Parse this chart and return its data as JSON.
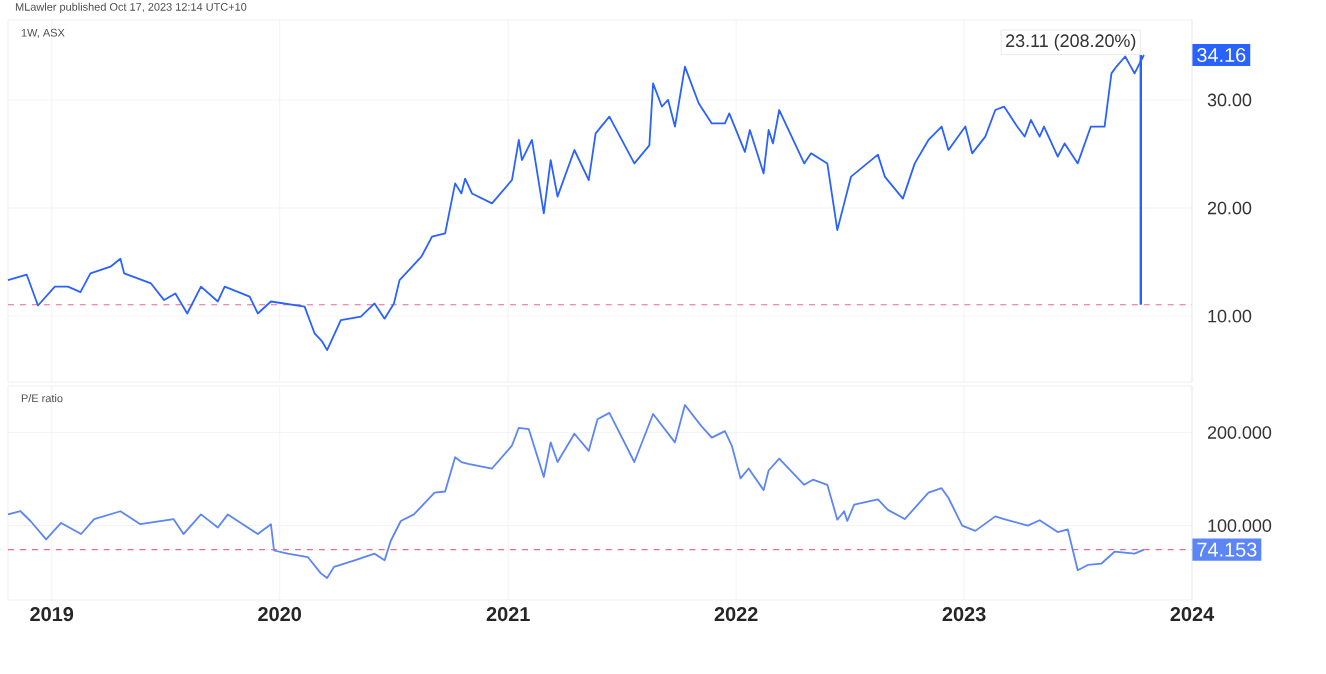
{
  "chart_data": [
    {
      "type": "line",
      "title": "1W, ASX",
      "annotations": [
        "MLawler published Oct 17, 2023 12:14 UTC+10",
        {
          "text": "23.11 (208.20%)",
          "x": "2023-10-11",
          "y": 34.16
        },
        {
          "text": "34.16",
          "x": "2023-10-16",
          "y": 34.16
        }
      ],
      "x": [
        "2018-10-23",
        "2018-11-22",
        "2018-12-10",
        "2019-01-06",
        "2019-01-27",
        "2019-02-16",
        "2019-03-04",
        "2019-04-05",
        "2019-04-21",
        "2019-04-27",
        "2019-06-09",
        "2019-06-30",
        "2019-07-18",
        "2019-08-06",
        "2019-08-28",
        "2019-09-24",
        "2019-10-05",
        "2019-11-14",
        "2019-11-27",
        "2019-12-18",
        "2020-02-10",
        "2020-02-26",
        "2020-03-09",
        "2020-03-17",
        "2020-04-08",
        "2020-05-10",
        "2020-06-01",
        "2020-06-17",
        "2020-07-02",
        "2020-07-11",
        "2020-08-15",
        "2020-09-01",
        "2020-09-22",
        "2020-10-08",
        "2020-10-18",
        "2020-10-24",
        "2020-11-04",
        "2020-12-06",
        "2021-01-07",
        "2021-01-18",
        "2021-01-23",
        "2021-02-08",
        "2021-02-27",
        "2021-03-10",
        "2021-03-21",
        "2021-04-17",
        "2021-05-10",
        "2021-05-21",
        "2021-06-12",
        "2021-07-22",
        "2021-08-15",
        "2021-08-21",
        "2021-09-04",
        "2021-09-14",
        "2021-09-25",
        "2021-10-11",
        "2021-11-02",
        "2021-11-23",
        "2021-12-14",
        "2021-12-21",
        "2022-01-15",
        "2022-01-23",
        "2022-02-14",
        "2022-02-22",
        "2022-03-01",
        "2022-03-11",
        "2022-04-20",
        "2022-05-01",
        "2022-05-27",
        "2022-06-12",
        "2022-06-23",
        "2022-07-04",
        "2022-08-16",
        "2022-08-27",
        "2022-09-25",
        "2022-10-14",
        "2022-11-05",
        "2022-11-26",
        "2022-12-07",
        "2023-01-03",
        "2023-01-14",
        "2023-02-04",
        "2023-02-20",
        "2023-03-06",
        "2023-03-27",
        "2023-04-08",
        "2023-04-18",
        "2023-05-02",
        "2023-05-09",
        "2023-05-31",
        "2023-06-11",
        "2023-07-02",
        "2023-07-23",
        "2023-08-14",
        "2023-08-25",
        "2023-09-02",
        "2023-09-16",
        "2023-10-01",
        "2023-10-16"
      ],
      "series": [
        {
          "color": "#2962ff",
          "values": [
            13.33,
            13.83,
            10.98,
            12.72,
            12.72,
            12.22,
            13.95,
            14.57,
            15.31,
            13.95,
            13.02,
            11.48,
            12.09,
            10.24,
            12.72,
            11.35,
            12.72,
            11.8,
            10.24,
            11.35,
            10.87,
            8.39,
            7.65,
            6.85,
            9.63,
            9.94,
            11.17,
            9.76,
            11.17,
            13.33,
            15.5,
            17.35,
            17.65,
            22.28,
            21.35,
            22.72,
            21.35,
            20.43,
            22.59,
            26.3,
            24.44,
            26.3,
            19.5,
            24.44,
            21.05,
            25.37,
            22.59,
            26.91,
            28.46,
            24.13,
            25.8,
            31.54,
            29.39,
            30.0,
            27.54,
            33.09,
            29.69,
            27.83,
            27.83,
            28.76,
            25.19,
            27.22,
            23.2,
            27.22,
            25.98,
            29.07,
            24.13,
            25.06,
            24.13,
            17.96,
            20.43,
            22.91,
            24.94,
            22.91,
            20.87,
            24.13,
            26.3,
            27.54,
            25.37,
            27.54,
            25.06,
            26.61,
            29.07,
            29.39,
            27.54,
            26.61,
            28.15,
            26.61,
            27.54,
            24.76,
            25.98,
            24.13,
            27.54,
            27.54,
            32.46,
            33.09,
            34.02,
            32.46,
            34.16
          ]
        }
      ],
      "xlim": [
        "2018-10-23",
        "2024-01-01"
      ],
      "xticks": [
        "2019",
        "2020",
        "2021",
        "2022",
        "2023",
        "2024"
      ],
      "ylim": [
        3.9,
        37.4
      ],
      "yticks": [
        {
          "value": 10,
          "label": "10.00"
        },
        {
          "value": 20,
          "label": "20.00"
        },
        {
          "value": 30,
          "label": "30.00"
        }
      ],
      "ref_lines": [
        {
          "axis": "y",
          "value": 11.05,
          "color": "#f06595",
          "line_style": "dashed"
        }
      ],
      "grid": true,
      "tick_labels": "y"
    },
    {
      "type": "line",
      "title": "P/E ratio",
      "x": [
        "2018-10-23",
        "2018-11-12",
        "2018-11-28",
        "2018-12-23",
        "2019-01-16",
        "2019-02-17",
        "2019-03-10",
        "2019-04-21",
        "2019-05-23",
        "2019-07-15",
        "2019-07-31",
        "2019-08-28",
        "2019-09-24",
        "2019-10-10",
        "2019-11-27",
        "2019-12-18",
        "2019-12-23",
        "2020-01-14",
        "2020-02-15",
        "2020-03-07",
        "2020-03-17",
        "2020-03-28",
        "2020-04-30",
        "2020-06-01",
        "2020-06-17",
        "2020-06-27",
        "2020-07-13",
        "2020-08-03",
        "2020-09-05",
        "2020-09-22",
        "2020-10-08",
        "2020-10-18",
        "2020-10-29",
        "2020-12-06",
        "2021-01-07",
        "2021-01-18",
        "2021-02-03",
        "2021-02-27",
        "2021-03-10",
        "2021-03-21",
        "2021-04-17",
        "2021-05-10",
        "2021-05-24",
        "2021-06-12",
        "2021-07-22",
        "2021-08-21",
        "2021-09-25",
        "2021-10-11",
        "2021-11-06",
        "2021-11-23",
        "2021-12-14",
        "2021-12-25",
        "2022-01-08",
        "2022-01-21",
        "2022-02-14",
        "2022-02-22",
        "2022-03-11",
        "2022-04-20",
        "2022-05-04",
        "2022-05-27",
        "2022-06-12",
        "2022-06-23",
        "2022-06-28",
        "2022-07-09",
        "2022-08-16",
        "2022-09-01",
        "2022-09-28",
        "2022-11-05",
        "2022-11-26",
        "2022-12-07",
        "2022-12-29",
        "2023-01-19",
        "2023-02-20",
        "2023-03-06",
        "2023-04-13",
        "2023-05-02",
        "2023-05-31",
        "2023-06-16",
        "2023-07-02",
        "2023-07-18",
        "2023-08-09",
        "2023-08-30",
        "2023-10-01",
        "2023-10-16"
      ],
      "series": [
        {
          "color": "#5c85f5",
          "values": [
            112.0,
            115.4,
            104.9,
            85.2,
            102.8,
            90.9,
            107.0,
            115.4,
            101.5,
            107.0,
            90.9,
            112.0,
            97.9,
            112.0,
            90.9,
            101.5,
            73.2,
            69.8,
            66.2,
            48.6,
            43.6,
            55.6,
            62.6,
            69.8,
            62.6,
            83.7,
            104.9,
            112.0,
            135.3,
            136.6,
            173.4,
            168.3,
            166.2,
            161.3,
            186.0,
            205.1,
            203.6,
            152.2,
            189.4,
            168.3,
            198.7,
            180.3,
            214.2,
            221.1,
            168.3,
            219.9,
            189.4,
            229.6,
            207.2,
            194.5,
            201.5,
            186.0,
            150.7,
            161.3,
            138.1,
            159.2,
            171.9,
            143.8,
            149.3,
            143.8,
            106.3,
            115.4,
            104.9,
            122.6,
            128.1,
            116.9,
            107.0,
            135.3,
            140.2,
            129.6,
            100.0,
            94.3,
            109.9,
            107.0,
            100.0,
            105.7,
            93.0,
            95.8,
            52.0,
            57.7,
            59.2,
            71.9,
            69.8,
            74.153
          ]
        }
      ],
      "xlim": [
        "2018-10-23",
        "2024-01-01"
      ],
      "xticks": [
        "2019",
        "2020",
        "2021",
        "2022",
        "2023",
        "2024"
      ],
      "ylim": [
        20,
        250
      ],
      "yticks": [
        {
          "value": 100,
          "label": "100.000"
        },
        {
          "value": 200,
          "label": "200.000"
        }
      ],
      "ref_lines": [
        {
          "axis": "y",
          "value": 74.153,
          "label": "74.153",
          "color": "#f06595",
          "line_style": "dashed"
        }
      ],
      "grid": true
    }
  ]
}
